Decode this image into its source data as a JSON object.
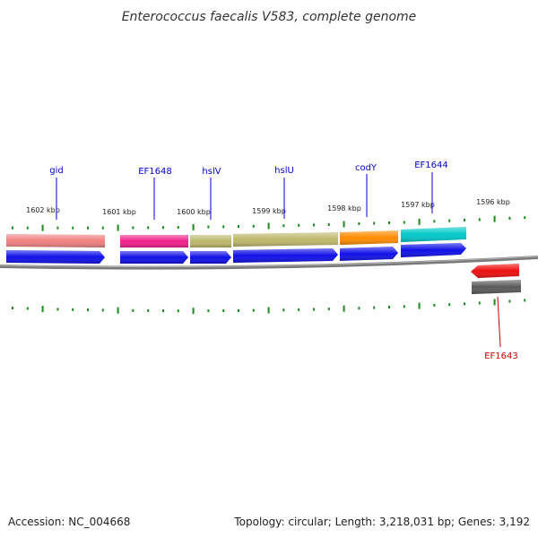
{
  "title": "Enterococcus faecalis V583, complete genome",
  "footer": {
    "accession": "Accession: NC_004668",
    "summary": "Topology: circular; Length: 3,218,031 bp; Genes: 3,192"
  },
  "colors": {
    "tick": "#1a8a1a",
    "backbone": "#7a7a7a",
    "forward_cds": "#1010e8",
    "reverse_cds": "#ee1010",
    "label_upper": "#0000cc",
    "label_lower": "#cc0000",
    "reverse_gene_bar": "#5a5a5a"
  },
  "kbp_labels": [
    "1602 kbp",
    "1601 kbp",
    "1600 kbp",
    "1599 kbp",
    "1598 kbp",
    "1597 kbp",
    "1596 kbp"
  ],
  "genes_upper": [
    {
      "name": "gid",
      "color": "#f08080"
    },
    {
      "name": "EF1648",
      "color": "#f0208a"
    },
    {
      "name": "hslV",
      "color": "#bdb76b"
    },
    {
      "name": "hslU",
      "color": "#bdb76b"
    },
    {
      "name": "codY",
      "color": "#ff8c00"
    },
    {
      "name": "EF1644",
      "color": "#00c8c8"
    }
  ],
  "genes_lower": [
    {
      "name": "EF1643"
    }
  ]
}
